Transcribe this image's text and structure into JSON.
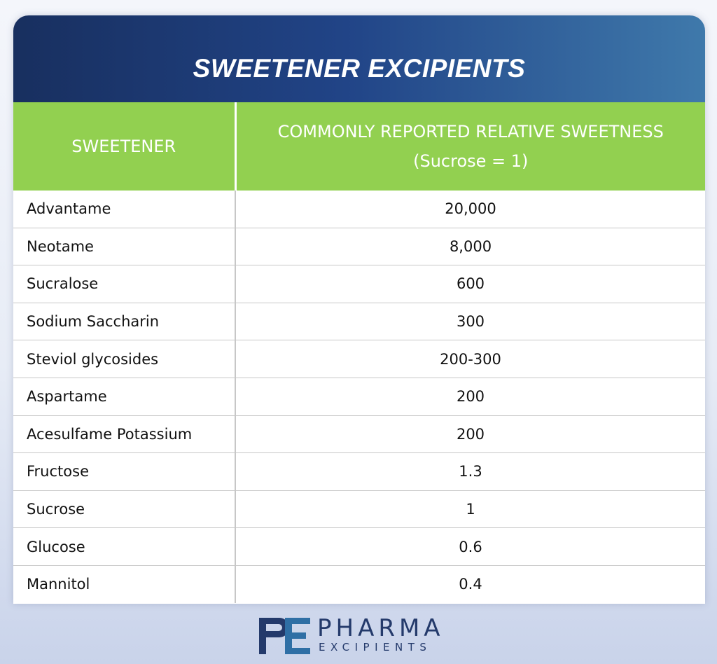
{
  "title": "SWEETENER EXCIPIENTS",
  "table": {
    "header_sweetener": "SWEETENER",
    "header_sweetness": "COMMONLY REPORTED RELATIVE SWEETNESS",
    "header_sweetness_sub": "(Sucrose = 1)",
    "rows": [
      {
        "name": "Advantame",
        "value": "20,000"
      },
      {
        "name": "Neotame",
        "value": "8,000"
      },
      {
        "name": "Sucralose",
        "value": "600"
      },
      {
        "name": "Sodium Saccharin",
        "value": "300"
      },
      {
        "name": "Steviol glycosides",
        "value": "200-300"
      },
      {
        "name": "Aspartame",
        "value": "200"
      },
      {
        "name": "Acesulfame Potassium",
        "value": "200"
      },
      {
        "name": "Fructose",
        "value": "1.3"
      },
      {
        "name": "Sucrose",
        "value": "1"
      },
      {
        "name": "Glucose",
        "value": "0.6"
      },
      {
        "name": "Mannitol",
        "value": "0.4"
      }
    ]
  },
  "logo": {
    "word": "PHARMA",
    "sub": "EXCIPIENTS",
    "mark_icon": "pe-monogram-icon"
  },
  "colors": {
    "header_gradient_start": "#182f5f",
    "header_gradient_end": "#3f79ab",
    "table_header_green": "#92d050",
    "logo_navy": "#243a6b",
    "logo_blue": "#2f6fa5"
  }
}
